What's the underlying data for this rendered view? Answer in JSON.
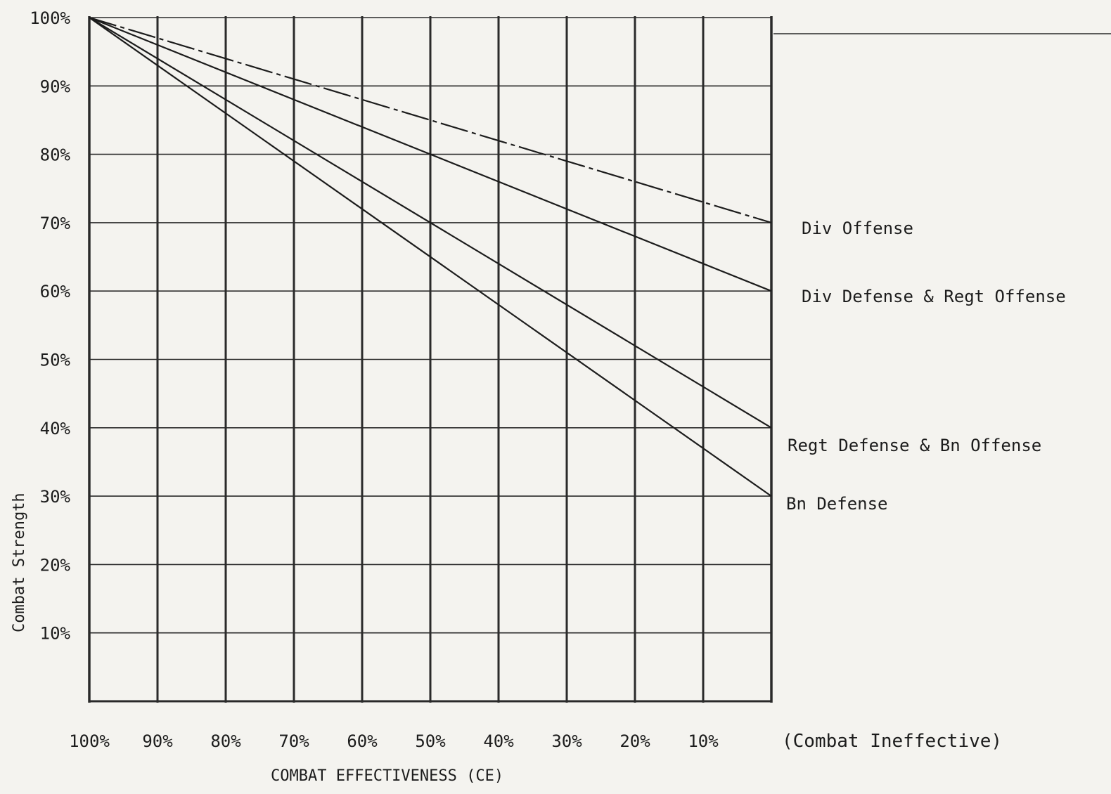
{
  "chart_data": {
    "type": "line",
    "title": "",
    "xlabel": "COMBAT EFFECTIVENESS (CE)",
    "ylabel": "Combat Strength",
    "x_unit": "%",
    "y_unit": "%",
    "xlim": [
      100,
      0
    ],
    "ylim": [
      0,
      100
    ],
    "x_ticks": [
      "100%",
      "90%",
      "80%",
      "70%",
      "60%",
      "50%",
      "40%",
      "30%",
      "20%",
      "10%"
    ],
    "y_ticks": [
      "10%",
      "20%",
      "30%",
      "40%",
      "50%",
      "60%",
      "70%",
      "80%",
      "90%",
      "100%"
    ],
    "x_end_label": "(Combat Ineffective)",
    "grid": true,
    "legend": "right",
    "series": [
      {
        "name": "Div Offense",
        "x": [
          100,
          0
        ],
        "y": [
          100,
          70
        ],
        "dash": "dashdot"
      },
      {
        "name": "Div Defense & Regt Offense",
        "x": [
          100,
          0
        ],
        "y": [
          100,
          60
        ],
        "dash": "solid"
      },
      {
        "name": "Regt Defense & Bn Offense",
        "x": [
          100,
          0
        ],
        "y": [
          100,
          40
        ],
        "dash": "solid"
      },
      {
        "name": "Bn Defense",
        "x": [
          100,
          0
        ],
        "y": [
          100,
          30
        ],
        "dash": "solid"
      }
    ],
    "colors": {
      "ink": "#1c1c1c",
      "paper": "#f4f3ef",
      "grid": "#2a2a2a"
    }
  }
}
